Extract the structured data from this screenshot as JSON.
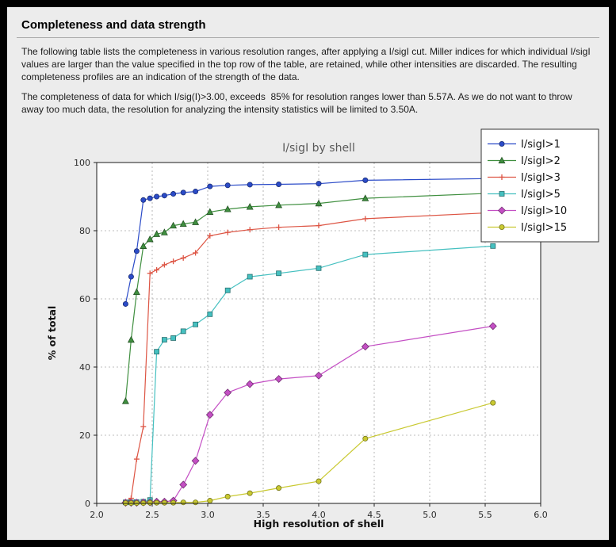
{
  "page": {
    "title": "Completeness and data strength",
    "paragraph1": "The following table lists the completeness in various resolution ranges, after applying a I/sigI cut. Miller indices for which individual I/sigI values are larger than the value specified in the top row of the table, are retained, while other intensities are discarded. The resulting completeness profiles are an indication of the strength of the data.",
    "paragraph2": "The completeness of data for which I/sig(I)>3.00, exceeds  85% for resolution ranges lower than 5.57A. As we do not want to throw away too much data, the resolution for analyzing the intensity statistics will be limited to 3.50A."
  },
  "chart_data": {
    "type": "line",
    "title": "I/sigI by shell",
    "xlabel": "High resolution of shell",
    "ylabel": "% of total",
    "xlim": [
      2.0,
      6.0
    ],
    "ylim": [
      0,
      100
    ],
    "x_ticks": [
      "2.0",
      "2.5",
      "3.0",
      "3.5",
      "4.0",
      "4.5",
      "5.0",
      "5.5",
      "6.0"
    ],
    "y_ticks": [
      "0",
      "20",
      "40",
      "60",
      "80",
      "100"
    ],
    "grid": "dashed",
    "legend_position": "top-right",
    "plot_bg": "#ffffff",
    "figure_bg": "#ececec",
    "x": [
      2.26,
      2.31,
      2.36,
      2.42,
      2.48,
      2.54,
      2.61,
      2.69,
      2.78,
      2.89,
      3.02,
      3.18,
      3.38,
      3.64,
      4.0,
      4.42,
      5.57
    ],
    "series": [
      {
        "name": "I/sigI>1",
        "color": "#2b4bc8",
        "marker": "circle",
        "values": [
          58.5,
          66.5,
          74,
          89,
          89.5,
          90,
          90.3,
          90.8,
          91.2,
          91.5,
          93,
          93.3,
          93.5,
          93.6,
          93.8,
          94.8,
          95.3
        ]
      },
      {
        "name": "I/sigI>2",
        "color": "#3f8f3f",
        "marker": "triangle",
        "values": [
          30,
          48,
          62,
          75.5,
          77.5,
          79,
          79.5,
          81.5,
          82,
          82.5,
          85.5,
          86.3,
          87,
          87.5,
          88,
          89.5,
          91
        ]
      },
      {
        "name": "I/sigI>3",
        "color": "#dd5544",
        "marker": "plus",
        "values": [
          0.5,
          1.5,
          13,
          22.5,
          67.5,
          68.5,
          70,
          71,
          72,
          73.5,
          78.5,
          79.5,
          80.3,
          81,
          81.5,
          83.5,
          85.3
        ]
      },
      {
        "name": "I/sigI>5",
        "color": "#45c0c0",
        "marker": "square",
        "values": [
          0.3,
          0.3,
          0.4,
          0.5,
          1.0,
          44.5,
          48,
          48.5,
          50.5,
          52.5,
          55.5,
          62.5,
          66.5,
          67.5,
          69,
          73,
          75.5
        ]
      },
      {
        "name": "I/sigI>10",
        "color": "#c44fc4",
        "marker": "diamond",
        "values": [
          0.2,
          0.2,
          0.2,
          0.3,
          0.3,
          0.5,
          0.5,
          0.8,
          5.5,
          12.5,
          26,
          32.5,
          35,
          36.5,
          37.5,
          46,
          52
        ]
      },
      {
        "name": "I/sigI>15",
        "color": "#c9c931",
        "marker": "circle",
        "values": [
          0.1,
          0.1,
          0.1,
          0.1,
          0.2,
          0.2,
          0.2,
          0.2,
          0.3,
          0.3,
          0.8,
          2,
          3,
          4.5,
          6.5,
          19,
          29.5
        ]
      }
    ]
  }
}
